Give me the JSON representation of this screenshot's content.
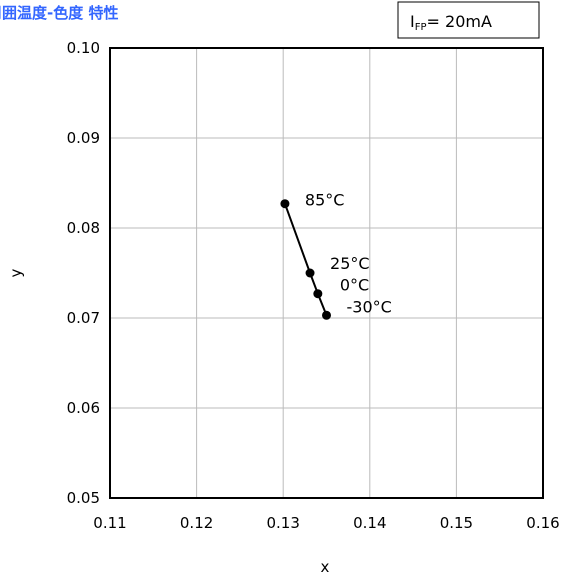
{
  "chart_data": {
    "type": "line",
    "title": "周囲温度-色度 特性",
    "condition_label": "IFP=20mA",
    "condition": {
      "main": "I",
      "sub": "FP",
      "rest": "= 20mA"
    },
    "xlabel": "x",
    "ylabel": "y",
    "xlim": [
      0.11,
      0.16
    ],
    "ylim": [
      0.05,
      0.1
    ],
    "x_ticks": [
      0.11,
      0.12,
      0.13,
      0.14,
      0.15,
      0.16
    ],
    "y_ticks": [
      0.05,
      0.06,
      0.07,
      0.08,
      0.09,
      0.1
    ],
    "x_tick_labels": [
      "0.11",
      "0.12",
      "0.13",
      "0.14",
      "0.15",
      "0.16"
    ],
    "y_tick_labels": [
      "0.05",
      "0.06",
      "0.07",
      "0.08",
      "0.09",
      "0.10"
    ],
    "grid": true,
    "series": [
      {
        "points": [
          {
            "x": 0.1302,
            "y": 0.0827,
            "label": "85°C"
          },
          {
            "x": 0.1331,
            "y": 0.075,
            "label": "25°C"
          },
          {
            "x": 0.134,
            "y": 0.0727,
            "label": "0°C"
          },
          {
            "x": 0.135,
            "y": 0.0703,
            "label": "-30°C"
          }
        ]
      }
    ],
    "colors": {
      "line": "#000000",
      "grid": "#bbbbbb",
      "title": "#3366ff"
    }
  }
}
